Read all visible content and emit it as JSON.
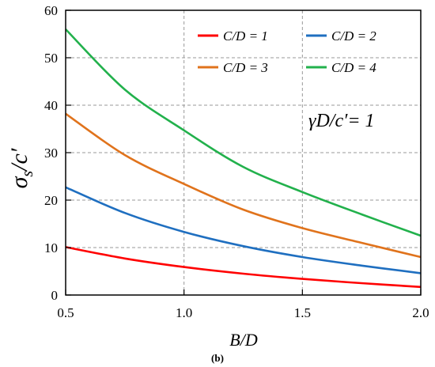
{
  "chart_data": {
    "type": "line",
    "xlabel": "B/D",
    "ylabel": "σs/c′",
    "xlim": [
      0.5,
      2.0
    ],
    "ylim": [
      0,
      60
    ],
    "xticks": [
      "0.5",
      "1.0",
      "1.5",
      "2.0"
    ],
    "yticks": [
      "0",
      "10",
      "20",
      "30",
      "40",
      "50",
      "60"
    ],
    "grid": true,
    "legend_position": "top-right",
    "annotation": "γD/c′= 1",
    "caption": "(b)",
    "x": [
      0.5,
      0.75,
      1.0,
      1.25,
      1.5,
      1.75,
      2.0
    ],
    "series": [
      {
        "name": "C/D = 1",
        "color": "#ff0000",
        "values": [
          10.1,
          7.7,
          5.9,
          4.5,
          3.4,
          2.5,
          1.7
        ]
      },
      {
        "name": "C/D = 2",
        "color": "#1f6fc0",
        "values": [
          22.7,
          17.3,
          13.3,
          10.3,
          8.0,
          6.2,
          4.6
        ]
      },
      {
        "name": "C/D = 3",
        "color": "#e0731c",
        "values": [
          38.2,
          29.5,
          23.4,
          18.0,
          14.1,
          11.0,
          8.0
        ]
      },
      {
        "name": "C/D = 4",
        "color": "#22b14c",
        "values": [
          56.0,
          43.3,
          34.7,
          27.0,
          21.7,
          17.0,
          12.5
        ]
      }
    ]
  }
}
